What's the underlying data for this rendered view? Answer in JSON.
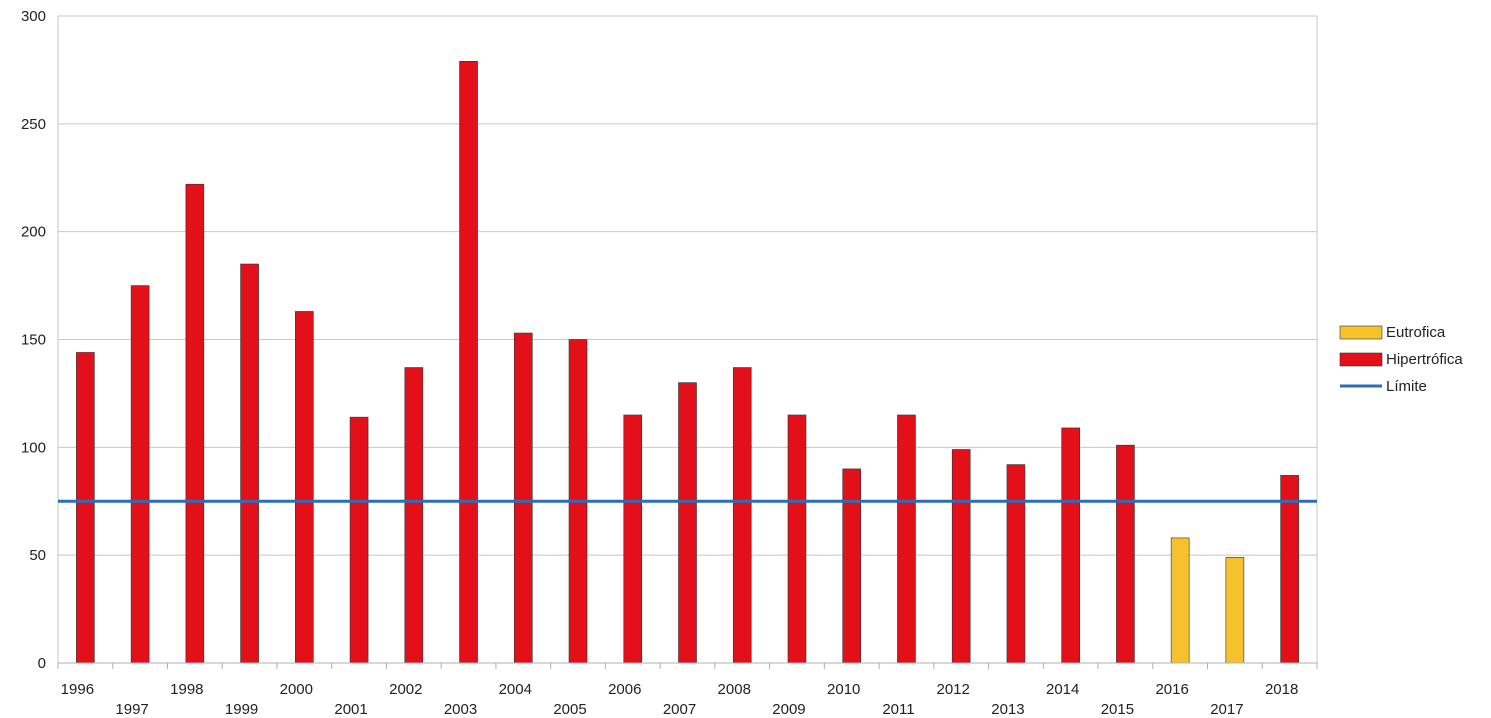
{
  "chart_data": {
    "type": "bar",
    "categories": [
      "1996",
      "1997",
      "1998",
      "1999",
      "2000",
      "2001",
      "2002",
      "2003",
      "2004",
      "2005",
      "2006",
      "2007",
      "2008",
      "2009",
      "2010",
      "2011",
      "2012",
      "2013",
      "2014",
      "2015",
      "2016",
      "2017",
      "2018"
    ],
    "series": [
      {
        "name": "Eutrofica",
        "type": "bar",
        "color": "#f5c22e",
        "values": [
          null,
          null,
          null,
          null,
          null,
          null,
          null,
          null,
          null,
          null,
          null,
          null,
          null,
          null,
          null,
          null,
          null,
          null,
          null,
          null,
          58,
          49,
          null
        ]
      },
      {
        "name": "Hipertrófica",
        "type": "bar",
        "color": "#e3101a",
        "values": [
          144,
          175,
          222,
          185,
          163,
          114,
          137,
          279,
          153,
          150,
          115,
          130,
          137,
          115,
          90,
          115,
          99,
          92,
          109,
          101,
          null,
          null,
          87
        ]
      },
      {
        "name": "Límite",
        "type": "line",
        "color": "#2a6ebb",
        "values": [
          75,
          75,
          75,
          75,
          75,
          75,
          75,
          75,
          75,
          75,
          75,
          75,
          75,
          75,
          75,
          75,
          75,
          75,
          75,
          75,
          75,
          75,
          75
        ]
      }
    ],
    "title": "",
    "xlabel": "",
    "ylabel": "",
    "ylim": [
      0,
      300
    ],
    "yticks": [
      "0",
      "50",
      "100",
      "150",
      "200",
      "250",
      "300"
    ],
    "grid": true,
    "legend_position": "right"
  }
}
